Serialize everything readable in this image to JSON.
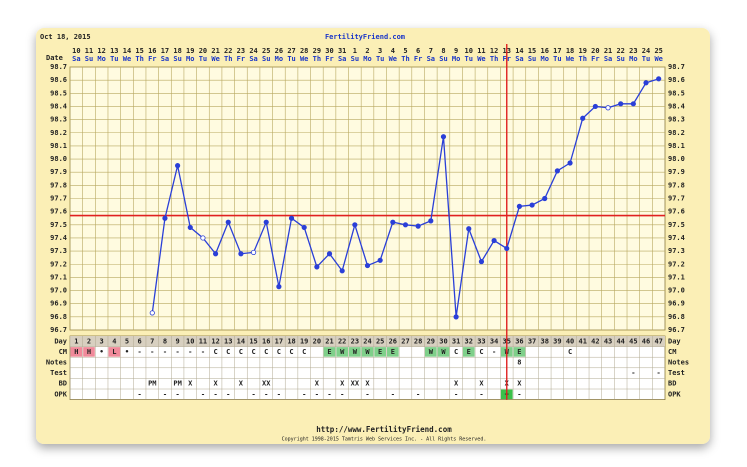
{
  "chart_data": {
    "type": "line",
    "header_date": "Oct 18, 2015",
    "site": "FertilityFriend.com",
    "date_label": "Date",
    "day_label": "Day",
    "dates": [
      "10",
      "11",
      "12",
      "13",
      "14",
      "15",
      "16",
      "17",
      "18",
      "19",
      "20",
      "21",
      "22",
      "23",
      "24",
      "25",
      "26",
      "27",
      "28",
      "29",
      "30",
      "31",
      "1",
      "2",
      "3",
      "4",
      "5",
      "6",
      "7",
      "8",
      "9",
      "10",
      "11",
      "12",
      "13",
      "14",
      "15",
      "16",
      "17",
      "18",
      "19",
      "20",
      "21",
      "22",
      "23",
      "24",
      "25"
    ],
    "weekdays": [
      "Sa",
      "Su",
      "Mo",
      "Tu",
      "We",
      "Th",
      "Fr",
      "Sa",
      "Su",
      "Mo",
      "Tu",
      "We",
      "Th",
      "Fr",
      "Sa",
      "Su",
      "Mo",
      "Tu",
      "We",
      "Th",
      "Fr",
      "Sa",
      "Su",
      "Mo",
      "Tu",
      "We",
      "Th",
      "Fr",
      "Sa",
      "Su",
      "Mo",
      "Tu",
      "We",
      "Th",
      "Fr",
      "Sa",
      "Su",
      "Mo",
      "Tu",
      "We",
      "Th",
      "Fr",
      "Sa",
      "Su",
      "Mo",
      "Tu",
      "We"
    ],
    "x": [
      1,
      2,
      3,
      4,
      5,
      6,
      7,
      8,
      9,
      10,
      11,
      12,
      13,
      14,
      15,
      16,
      17,
      18,
      19,
      20,
      21,
      22,
      23,
      24,
      25,
      26,
      27,
      28,
      29,
      30,
      31,
      32,
      33,
      34,
      35,
      36,
      37,
      38,
      39,
      40,
      41,
      42,
      43,
      44,
      45,
      46,
      47
    ],
    "xlim": [
      0.5,
      47.5
    ],
    "series": [
      {
        "name": "Temperature",
        "color": "#2a3fd8",
        "values": [
          null,
          null,
          null,
          null,
          null,
          null,
          96.83,
          97.55,
          97.95,
          97.48,
          97.4,
          97.28,
          97.52,
          97.28,
          97.29,
          97.52,
          97.03,
          97.55,
          97.48,
          97.18,
          97.28,
          97.15,
          97.5,
          97.19,
          97.23,
          97.52,
          97.5,
          97.49,
          97.53,
          98.17,
          96.8,
          97.47,
          97.22,
          97.38,
          97.32,
          97.64,
          97.65,
          97.7,
          97.91,
          97.97,
          98.31,
          98.4,
          98.39,
          98.42,
          98.42,
          98.58,
          98.61
        ]
      }
    ],
    "open_points": [
      7,
      11,
      15,
      43
    ],
    "coverline": 97.57,
    "ovulation_day": 35,
    "line_color": "#e02020",
    "ylim": [
      96.7,
      98.7
    ],
    "yticks": [
      96.7,
      96.8,
      96.9,
      {
        "value": 97,
        "label": "97.0"
      },
      97.1,
      97.2,
      97.3,
      97.4,
      97.5,
      97.6,
      97.7,
      97.8,
      97.9,
      {
        "value": 98,
        "label": "98.0"
      },
      98.1,
      98.2,
      98.3,
      98.4,
      98.5,
      98.6,
      98.7
    ],
    "grid": true,
    "rows": [
      {
        "label": "CM",
        "cells": [
          "H",
          "H",
          "•",
          "L",
          "•",
          "-",
          "-",
          "-",
          "-",
          "-",
          "-",
          "C",
          "C",
          "C",
          "C",
          "C",
          "C",
          "C",
          "C",
          null,
          "E",
          "W",
          "W",
          "W",
          "E",
          "E",
          null,
          null,
          "W",
          "W",
          "C",
          "E",
          "C",
          "-",
          "W",
          "E",
          null,
          null,
          null,
          "C",
          null,
          null,
          null,
          null,
          null,
          null,
          null
        ],
        "colors": [
          "#f08a9a",
          "#f08a9a",
          null,
          "#f08a9a",
          null,
          null,
          null,
          null,
          null,
          null,
          null,
          null,
          null,
          null,
          null,
          null,
          null,
          null,
          null,
          null,
          "#7fd08a",
          "#7fd08a",
          "#7fd08a",
          "#7fd08a",
          "#7fd08a",
          "#7fd08a",
          null,
          null,
          "#7fd08a",
          "#7fd08a",
          null,
          "#7fd08a",
          null,
          null,
          "#7fd08a",
          "#7fd08a",
          null,
          null,
          null,
          null,
          null,
          null,
          null,
          null,
          null,
          null,
          null
        ]
      },
      {
        "label": "Notes",
        "cells": [
          null,
          null,
          null,
          null,
          null,
          null,
          null,
          null,
          null,
          null,
          null,
          null,
          null,
          null,
          null,
          null,
          null,
          null,
          null,
          null,
          null,
          null,
          null,
          null,
          null,
          null,
          null,
          null,
          null,
          null,
          null,
          null,
          null,
          null,
          null,
          "8",
          null,
          null,
          null,
          null,
          null,
          null,
          null,
          null,
          null,
          null,
          null
        ]
      },
      {
        "label": "Test",
        "cells": [
          null,
          null,
          null,
          null,
          null,
          null,
          null,
          null,
          null,
          null,
          null,
          null,
          null,
          null,
          null,
          null,
          null,
          null,
          null,
          null,
          null,
          null,
          null,
          null,
          null,
          null,
          null,
          null,
          null,
          null,
          null,
          null,
          null,
          null,
          null,
          null,
          null,
          null,
          null,
          null,
          null,
          null,
          null,
          null,
          "-",
          null,
          "-"
        ]
      },
      {
        "label": "BD",
        "cells": [
          null,
          null,
          null,
          null,
          null,
          null,
          "PM",
          null,
          "PM",
          "X",
          null,
          "X",
          null,
          "X",
          null,
          "XX",
          null,
          null,
          null,
          "X",
          null,
          "X",
          "XX",
          "X",
          null,
          null,
          null,
          null,
          null,
          null,
          "X",
          null,
          "X",
          null,
          "X",
          "X",
          null,
          null,
          null,
          null,
          null,
          null,
          null,
          null,
          null,
          null,
          null
        ]
      },
      {
        "label": "OPK",
        "cells": [
          null,
          null,
          null,
          null,
          null,
          "-",
          null,
          "-",
          "-",
          null,
          "-",
          "-",
          "-",
          null,
          "-",
          "-",
          "-",
          null,
          "-",
          "-",
          "-",
          "-",
          null,
          "-",
          null,
          "-",
          null,
          "-",
          null,
          null,
          "-",
          null,
          "-",
          null,
          "+",
          "-",
          null,
          null,
          null,
          null,
          null,
          null,
          null,
          null,
          null,
          null,
          null
        ],
        "colors": [
          null,
          null,
          null,
          null,
          null,
          null,
          null,
          null,
          null,
          null,
          null,
          null,
          null,
          null,
          null,
          null,
          null,
          null,
          null,
          null,
          null,
          null,
          null,
          null,
          null,
          null,
          null,
          null,
          null,
          null,
          null,
          null,
          null,
          null,
          "#3cc04a",
          null,
          null,
          null,
          null,
          null,
          null,
          null,
          null,
          null,
          null,
          null,
          null
        ]
      }
    ],
    "footer_url": "http://www.FertilityFriend.com",
    "copyright": "Copyright 1998-2015 Tamtris Web Services Inc. - All Rights Reserved."
  }
}
